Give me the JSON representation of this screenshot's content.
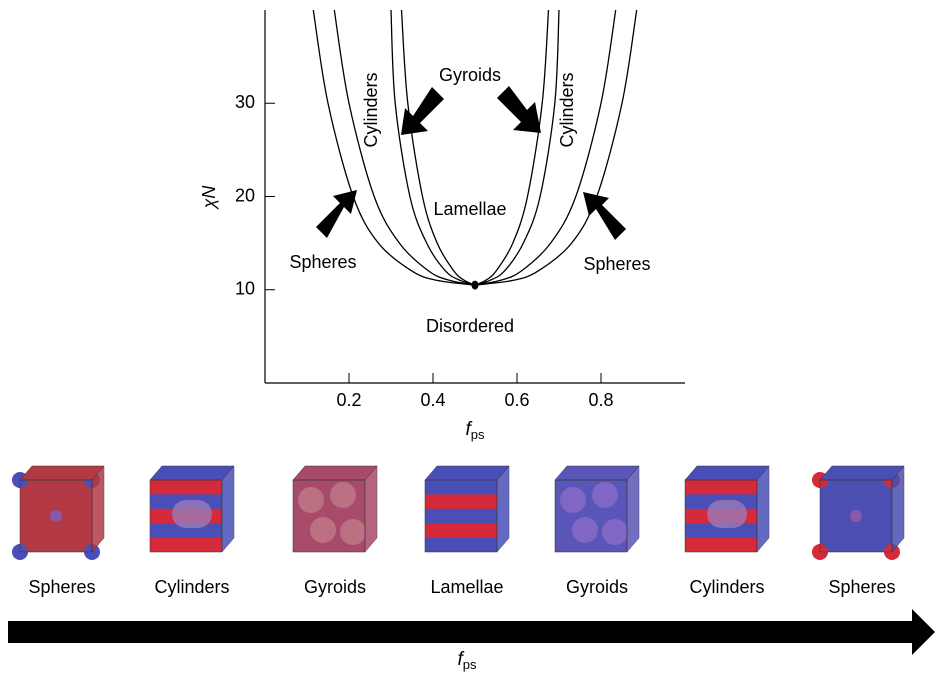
{
  "chart_data": {
    "type": "line",
    "x_label": {
      "symbol": "f",
      "subscript": "ps"
    },
    "y_label": "χN",
    "xlim": [
      0,
      1
    ],
    "ylim": [
      0,
      40
    ],
    "xticks": [
      0.2,
      0.4,
      0.6,
      0.8
    ],
    "yticks": [
      10,
      20,
      30
    ],
    "series": [
      {
        "color": "#000000",
        "x": [
          0.115,
          0.15,
          0.21,
          0.27,
          0.35,
          0.41,
          0.5
        ],
        "values": [
          40,
          30,
          20,
          15,
          12,
          11,
          10.5
        ]
      },
      {
        "color": "#000000",
        "x": [
          0.885,
          0.85,
          0.79,
          0.73,
          0.65,
          0.59,
          0.5
        ],
        "values": [
          40,
          30,
          20,
          15,
          12,
          11,
          10.5
        ]
      },
      {
        "color": "#000000",
        "x": [
          0.165,
          0.2,
          0.26,
          0.32,
          0.39,
          0.44,
          0.5
        ],
        "values": [
          40,
          30,
          20,
          15,
          12,
          11,
          10.5
        ]
      },
      {
        "color": "#000000",
        "x": [
          0.835,
          0.8,
          0.74,
          0.68,
          0.61,
          0.56,
          0.5
        ],
        "values": [
          40,
          30,
          20,
          15,
          12,
          11,
          10.5
        ]
      },
      {
        "color": "#000000",
        "x": [
          0.3,
          0.31,
          0.345,
          0.385,
          0.43,
          0.465,
          0.5
        ],
        "values": [
          40,
          30,
          20,
          15,
          12,
          11,
          10.5
        ]
      },
      {
        "color": "#000000",
        "x": [
          0.7,
          0.69,
          0.655,
          0.615,
          0.57,
          0.535,
          0.5
        ],
        "values": [
          40,
          30,
          20,
          15,
          12,
          11,
          10.5
        ]
      },
      {
        "color": "#000000",
        "x": [
          0.325,
          0.34,
          0.375,
          0.41,
          0.45,
          0.475,
          0.5
        ],
        "values": [
          40,
          30,
          20,
          15,
          12,
          11,
          10.5
        ]
      },
      {
        "color": "#000000",
        "x": [
          0.675,
          0.66,
          0.625,
          0.59,
          0.55,
          0.525,
          0.5
        ],
        "values": [
          40,
          30,
          20,
          15,
          12,
          11,
          10.5
        ]
      }
    ],
    "critical_point": {
      "x": 0.5,
      "y": 10.5
    },
    "annotations": [
      "Cylinders",
      "Cylinders",
      "Gyroids",
      "Lamellae",
      "Disordered",
      "Spheres",
      "Spheres"
    ]
  },
  "phase_sequence": {
    "labels": [
      "Spheres",
      "Cylinders",
      "Gyroids",
      "Lamellae",
      "Gyroids",
      "Cylinders",
      "Spheres"
    ],
    "axis_label": {
      "symbol": "f",
      "subscript": "ps"
    }
  }
}
